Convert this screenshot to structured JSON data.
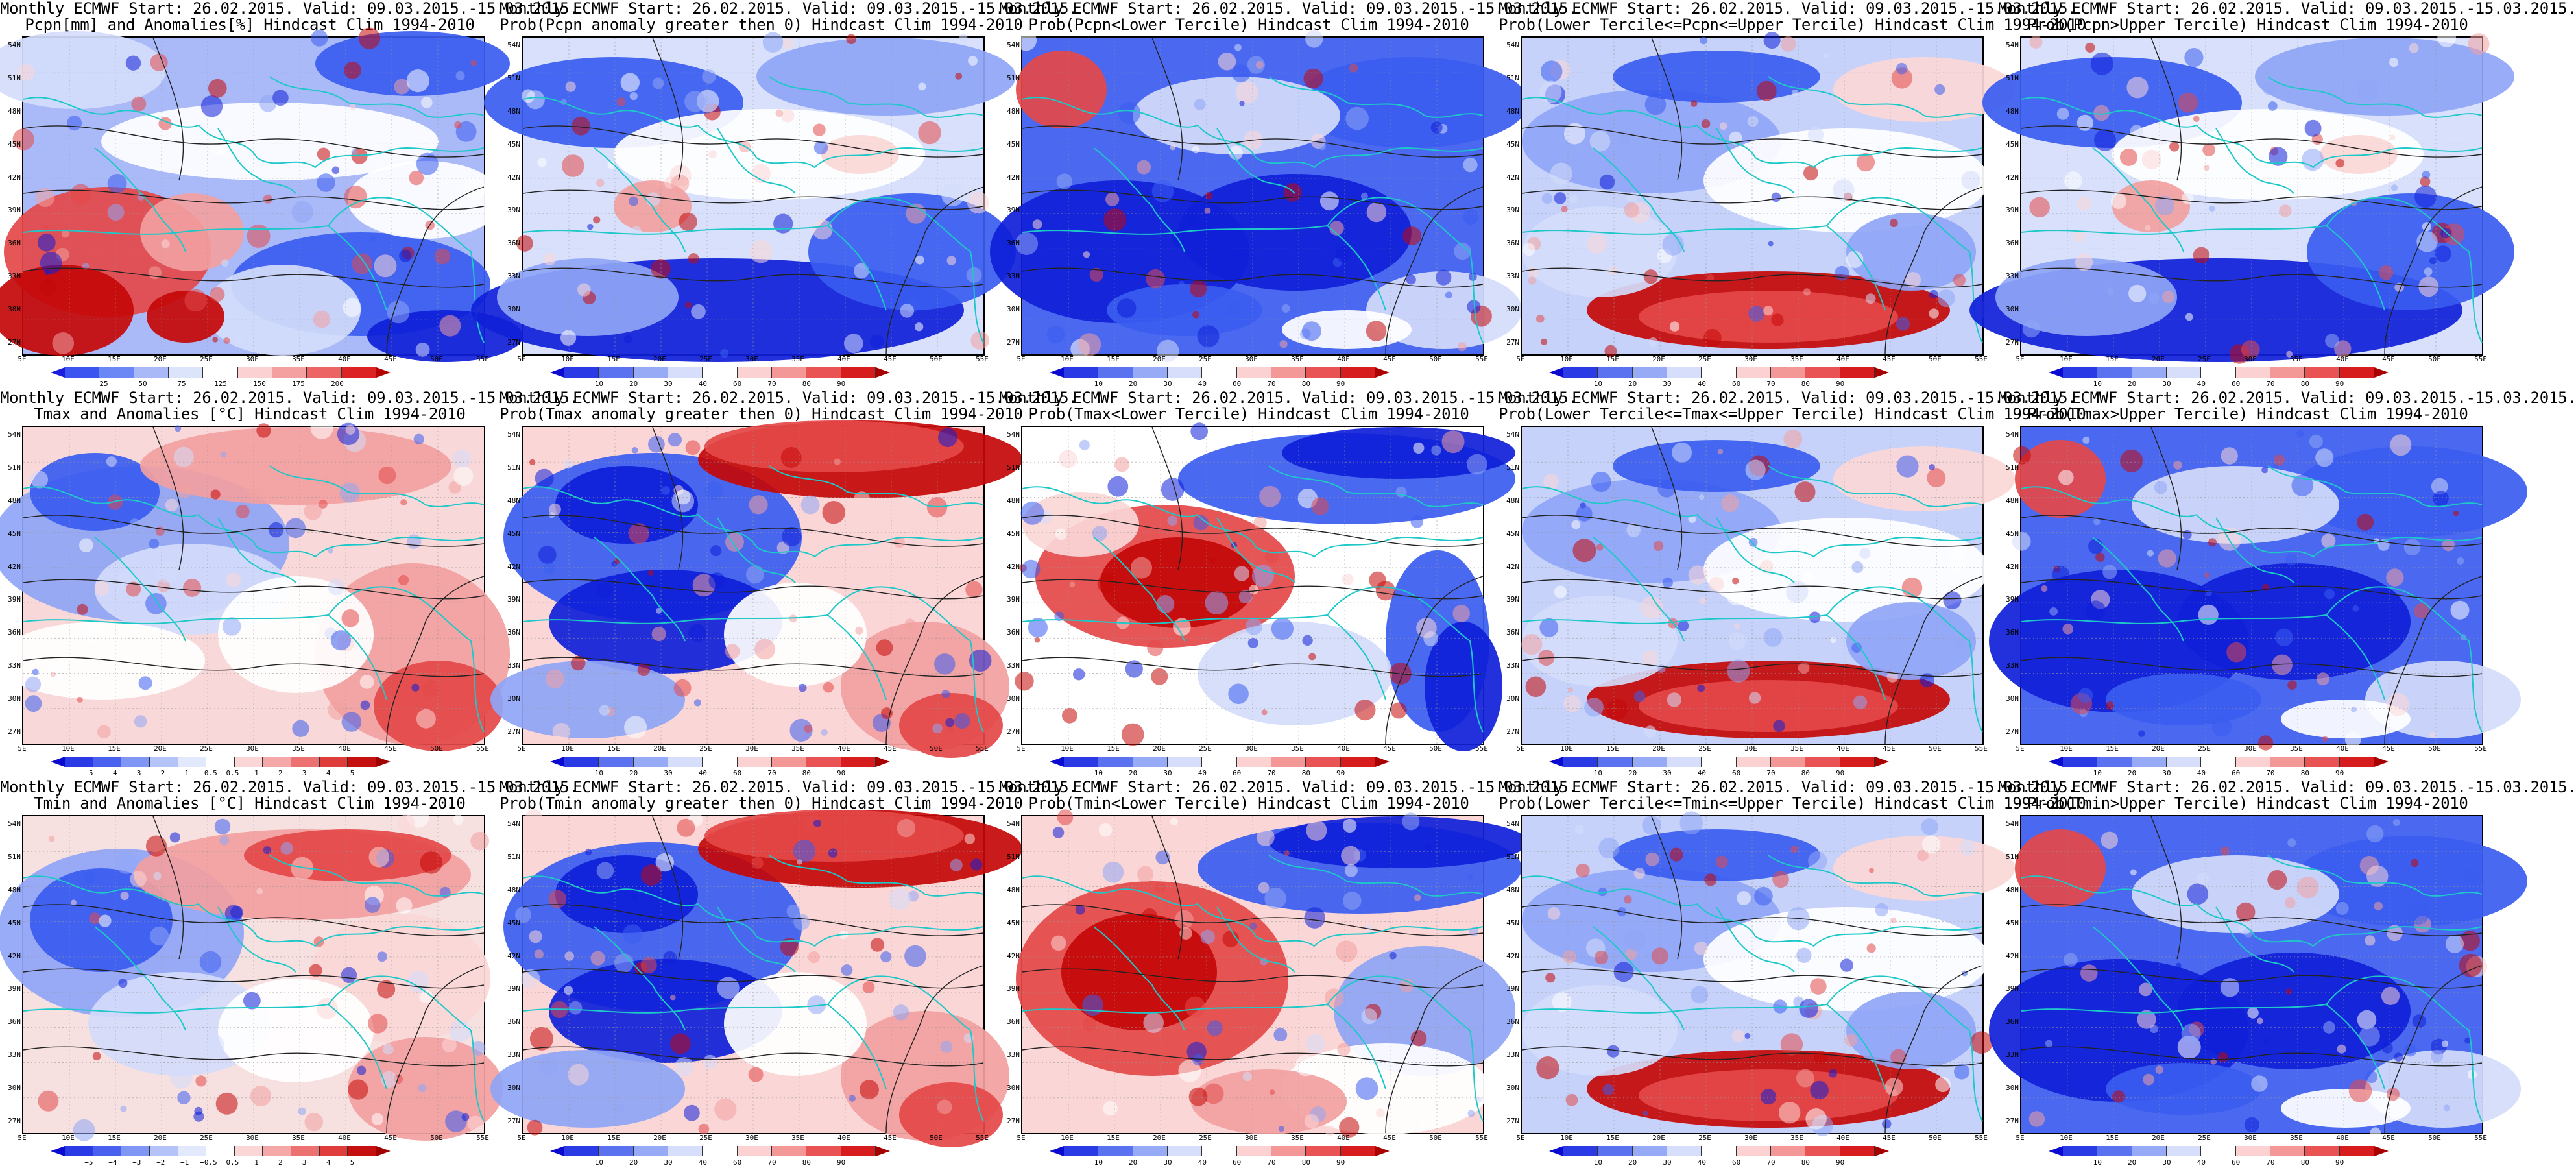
{
  "lat_labels": [
    "54N",
    "51N",
    "48N",
    "45N",
    "42N",
    "39N",
    "36N",
    "33N",
    "30N",
    "27N"
  ],
  "lon_labels": [
    "5E",
    "10E",
    "15E",
    "20E",
    "25E",
    "30E",
    "35E",
    "40E",
    "45E",
    "50E",
    "55E"
  ],
  "colorbars": {
    "pcpn": {
      "labels": [
        "25",
        "50",
        "75",
        "125",
        "150",
        "175",
        "200"
      ],
      "colors": [
        "#1d1de0",
        "#3a55f0",
        "#6b86f5",
        "#a9b9f7",
        "#dce4fb",
        "#ffffff",
        "#fbd1d1",
        "#f4a0a0",
        "#ec6464",
        "#dc2222",
        "#b50000"
      ]
    },
    "prob": {
      "labels": [
        "10",
        "20",
        "30",
        "40",
        "60",
        "70",
        "80",
        "90"
      ],
      "colors": [
        "#0a0ad0",
        "#2a3be6",
        "#5a72f0",
        "#97aaf6",
        "#d6defb",
        "#ffffff",
        "#fbd1d1",
        "#f39797",
        "#e95353",
        "#d61c1c",
        "#a80000"
      ]
    },
    "temp": {
      "labels": [
        "−5",
        "−4",
        "−3",
        "−2",
        "−1",
        "−0.5",
        "0.5",
        "1",
        "2",
        "3",
        "4",
        "5"
      ],
      "colors": [
        "#0a0ad0",
        "#2a3be6",
        "#4a60ee",
        "#7f96f4",
        "#b4c3f8",
        "#e3e9fc",
        "#ffffff",
        "#fbd6d6",
        "#f4a8a8",
        "#ec7272",
        "#df3c3c",
        "#c51010",
        "#a00000"
      ]
    }
  },
  "panels": [
    {
      "id": "p11",
      "title1": "Monthly ECMWF Start: 26.02.2015. Valid: 09.03.2015.-15.03.2015.",
      "title2": "Pcpn[mm] and Anomalies[%] Hindcast Clim 1994-2010",
      "cbar": "pcpn",
      "scheme": "pcpn"
    },
    {
      "id": "p12",
      "title1": "Monthly ECMWF Start: 26.02.2015. Valid: 09.03.2015.-15.03.2015.",
      "title2": "Prob(Pcpn anomaly greater then 0) Hindcast Clim 1994-2010",
      "cbar": "prob",
      "scheme": "blue"
    },
    {
      "id": "p13",
      "title1": "Monthly ECMWF Start: 26.02.2015. Valid: 09.03.2015.-15.03.2015.",
      "title2": "Prob(Pcpn<Lower Tercile) Hindcast Clim 1994-2010",
      "cbar": "prob",
      "scheme": "deepblue"
    },
    {
      "id": "p14",
      "title1": "Monthly ECMWF Start: 26.02.2015. Valid: 09.03.2015.-15.03.2015.",
      "title2": "Prob(Lower Tercile<=Pcpn<=Upper Tercile) Hindcast Clim 1994-2010",
      "cbar": "prob",
      "scheme": "mix"
    },
    {
      "id": "p15",
      "title1": "Monthly ECMWF Start: 26.02.2015. Valid: 09.03.2015.-15.03.2015.",
      "title2": "Prob(Pcpn>Upper Tercile) Hindcast Clim 1994-2010",
      "cbar": "prob",
      "scheme": "blue"
    },
    {
      "id": "p21",
      "title1": "Monthly ECMWF Start: 26.02.2015. Valid: 09.03.2015.-15.03.2015.",
      "title2": "Tmax and Anomalies [°C] Hindcast Clim 1994-2010",
      "cbar": "temp",
      "scheme": "tmax"
    },
    {
      "id": "p22",
      "title1": "Monthly ECMWF Start: 26.02.2015. Valid: 09.03.2015.-15.03.2015.",
      "title2": "Prob(Tmax anomaly greater then 0) Hindcast Clim 1994-2010",
      "cbar": "prob",
      "scheme": "probtmax"
    },
    {
      "id": "p23",
      "title1": "Monthly ECMWF Start: 26.02.2015. Valid: 09.03.2015.-15.03.2015.",
      "title2": "Prob(Tmax<Lower Tercile) Hindcast Clim 1994-2010",
      "cbar": "prob",
      "scheme": "lowtmax"
    },
    {
      "id": "p24",
      "title1": "Monthly ECMWF Start: 26.02.2015. Valid: 09.03.2015.-15.03.2015.",
      "title2": "Prob(Lower Tercile<=Tmax<=Upper Tercile) Hindcast Clim 1994-2010",
      "cbar": "prob",
      "scheme": "mix"
    },
    {
      "id": "p25",
      "title1": "Monthly ECMWF Start: 26.02.2015. Valid: 09.03.2015.-15.03.2015.",
      "title2": "Prob(Tmax>Upper Tercile) Hindcast Clim 1994-2010",
      "cbar": "prob",
      "scheme": "deepblue"
    },
    {
      "id": "p31",
      "title1": "Monthly ECMWF Start: 26.02.2015. Valid: 09.03.2015.-15.03.2015.",
      "title2": "Tmin and Anomalies [°C] Hindcast Clim 1994-2010",
      "cbar": "temp",
      "scheme": "tmin"
    },
    {
      "id": "p32",
      "title1": "Monthly ECMWF Start: 26.02.2015. Valid: 09.03.2015.-15.03.2015.",
      "title2": "Prob(Tmin anomaly greater then 0) Hindcast Clim 1994-2010",
      "cbar": "prob",
      "scheme": "probtmax"
    },
    {
      "id": "p33",
      "title1": "Monthly ECMWF Start: 26.02.2015. Valid: 09.03.2015.-15.03.2015.",
      "title2": "Prob(Tmin<Lower Tercile) Hindcast Clim 1994-2010",
      "cbar": "prob",
      "scheme": "lowtmin"
    },
    {
      "id": "p34",
      "title1": "Monthly ECMWF Start: 26.02.2015. Valid: 09.03.2015.-15.03.2015.",
      "title2": "Prob(Lower Tercile<=Tmin<=Upper Tercile) Hindcast Clim 1994-2010",
      "cbar": "prob",
      "scheme": "mix"
    },
    {
      "id": "p35",
      "title1": "Monthly ECMWF Start: 26.02.2015. Valid: 09.03.2015.-15.03.2015.",
      "title2": "Prob(Tmin>Upper Tercile) Hindcast Clim 1994-2010",
      "cbar": "prob",
      "scheme": "deepblue"
    }
  ]
}
